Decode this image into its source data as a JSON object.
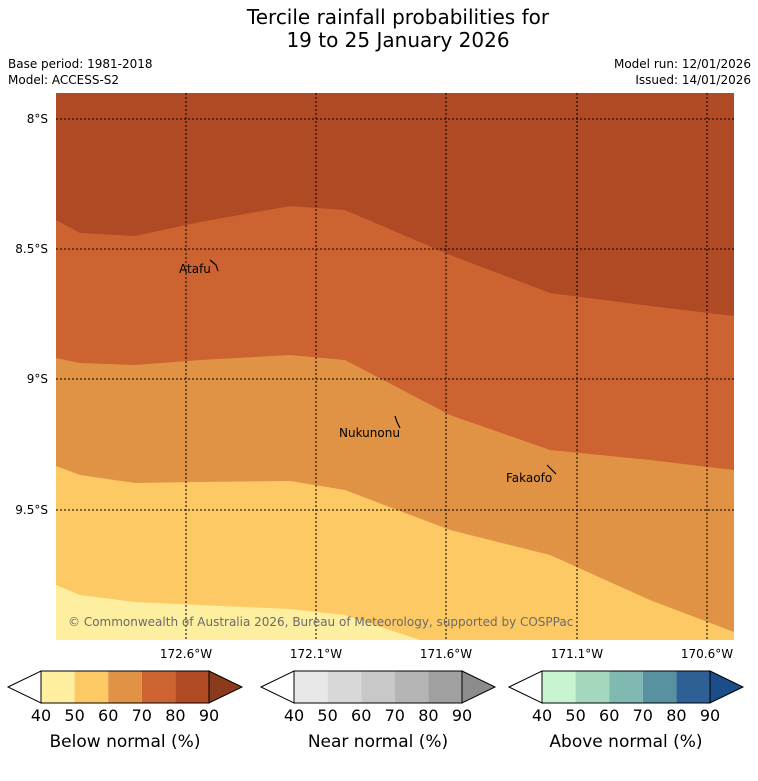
{
  "title": {
    "line1": "Tercile rainfall probabilities for",
    "line2": "19 to 25 January 2026"
  },
  "meta": {
    "base_period": "Base period: 1981-2018",
    "model": "Model: ACCESS-S2",
    "model_run": "Model run: 12/01/2026",
    "issued": "Issued: 14/01/2026"
  },
  "map": {
    "lat_labels": [
      "8°S",
      "8.5°S",
      "9°S",
      "9.5°S"
    ],
    "lon_labels": [
      "172.6°W",
      "172.1°W",
      "171.6°W",
      "171.1°W",
      "170.6°W"
    ],
    "places": [
      "Atafu",
      "Nukunonu",
      "Fakaofo"
    ],
    "copyright": "© Commonwealth of Australia 2026, Bureau of Meteorology, supported by COSPPac"
  },
  "colorbars": [
    {
      "name": "below",
      "label": "Below normal (%)",
      "ticks": [
        "40",
        "50",
        "60",
        "70",
        "80",
        "90"
      ],
      "colors": [
        "#ffffff",
        "#fdeea0",
        "#fdc964",
        "#e09344",
        "#cc6331",
        "#b04a25",
        "#8c3a1c"
      ]
    },
    {
      "name": "near",
      "label": "Near normal (%)",
      "ticks": [
        "40",
        "50",
        "60",
        "70",
        "80",
        "90"
      ],
      "colors": [
        "#ffffff",
        "#e8e8e8",
        "#d8d8d8",
        "#c8c8c8",
        "#b5b5b5",
        "#a0a0a0",
        "#8c8c8c"
      ]
    },
    {
      "name": "above",
      "label": "Above normal (%)",
      "ticks": [
        "40",
        "50",
        "60",
        "70",
        "80",
        "90"
      ],
      "colors": [
        "#ffffff",
        "#c8f5d0",
        "#a3d8bc",
        "#80b8b2",
        "#5891a0",
        "#2e6095",
        "#1a4d8a"
      ]
    }
  ]
}
